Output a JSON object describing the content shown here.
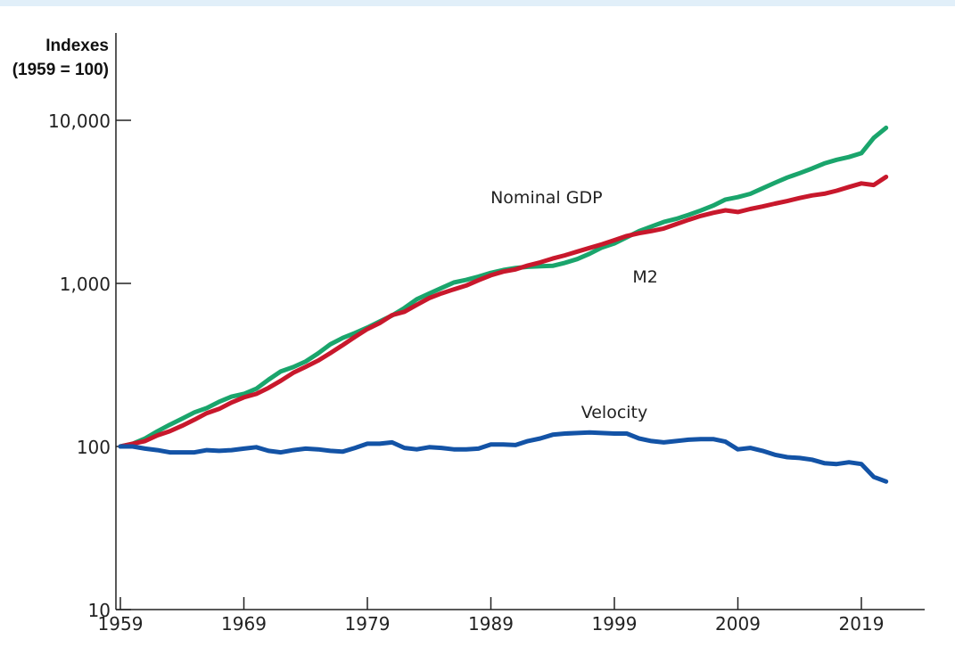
{
  "chart_data": {
    "type": "line",
    "ylabel": [
      "Indexes",
      "(1959 = 100)"
    ],
    "yscale": "log",
    "ylim": [
      10,
      20000
    ],
    "xlim": [
      1959,
      2024
    ],
    "yticks": [
      {
        "value": 10,
        "label": "10"
      },
      {
        "value": 100,
        "label": "100"
      },
      {
        "value": 1000,
        "label": "1,000"
      },
      {
        "value": 10000,
        "label": "10,000"
      }
    ],
    "xticks": [
      {
        "value": 1959,
        "label": "1959"
      },
      {
        "value": 1969,
        "label": "1969"
      },
      {
        "value": 1979,
        "label": "1979"
      },
      {
        "value": 1989,
        "label": "1989"
      },
      {
        "value": 1999,
        "label": "1999"
      },
      {
        "value": 2009,
        "label": "2009"
      },
      {
        "value": 2019,
        "label": "2019"
      }
    ],
    "grid": false,
    "series": [
      {
        "name": "M2",
        "color": "#1aa56c",
        "label_year": 2001.5,
        "label_value": 1010,
        "points": [
          [
            1959,
            100
          ],
          [
            1960,
            104
          ],
          [
            1961,
            112
          ],
          [
            1962,
            124
          ],
          [
            1963,
            136
          ],
          [
            1964,
            148
          ],
          [
            1965,
            162
          ],
          [
            1966,
            172
          ],
          [
            1967,
            188
          ],
          [
            1968,
            202
          ],
          [
            1969,
            210
          ],
          [
            1970,
            226
          ],
          [
            1971,
            257
          ],
          [
            1972,
            289
          ],
          [
            1973,
            307
          ],
          [
            1974,
            332
          ],
          [
            1975,
            372
          ],
          [
            1976,
            423
          ],
          [
            1977,
            463
          ],
          [
            1978,
            496
          ],
          [
            1979,
            536
          ],
          [
            1980,
            584
          ],
          [
            1981,
            636
          ],
          [
            1982,
            707
          ],
          [
            1983,
            799
          ],
          [
            1984,
            866
          ],
          [
            1985,
            937
          ],
          [
            1986,
            1013
          ],
          [
            1987,
            1050
          ],
          [
            1988,
            1101
          ],
          [
            1989,
            1160
          ],
          [
            1990,
            1208
          ],
          [
            1991,
            1243
          ],
          [
            1992,
            1263
          ],
          [
            1993,
            1274
          ],
          [
            1994,
            1281
          ],
          [
            1995,
            1337
          ],
          [
            1996,
            1410
          ],
          [
            1997,
            1520
          ],
          [
            1998,
            1660
          ],
          [
            1999,
            1760
          ],
          [
            2000,
            1920
          ],
          [
            2001,
            2090
          ],
          [
            2002,
            2233
          ],
          [
            2003,
            2380
          ],
          [
            2004,
            2486
          ],
          [
            2005,
            2630
          ],
          [
            2006,
            2800
          ],
          [
            2007,
            3000
          ],
          [
            2008,
            3267
          ],
          [
            2009,
            3380
          ],
          [
            2010,
            3540
          ],
          [
            2011,
            3830
          ],
          [
            2012,
            4140
          ],
          [
            2013,
            4460
          ],
          [
            2014,
            4740
          ],
          [
            2015,
            5064
          ],
          [
            2016,
            5440
          ],
          [
            2017,
            5725
          ],
          [
            2018,
            5955
          ],
          [
            2019,
            6287
          ],
          [
            2020,
            7800
          ],
          [
            2021,
            9000
          ]
        ]
      },
      {
        "name": "Nominal GDP",
        "color": "#c8182c",
        "label_year": 1993.5,
        "label_value": 3100,
        "points": [
          [
            1959,
            100
          ],
          [
            1960,
            104
          ],
          [
            1961,
            108
          ],
          [
            1962,
            117
          ],
          [
            1963,
            124
          ],
          [
            1964,
            134
          ],
          [
            1965,
            146
          ],
          [
            1966,
            160
          ],
          [
            1967,
            170
          ],
          [
            1968,
            186
          ],
          [
            1969,
            200
          ],
          [
            1970,
            210
          ],
          [
            1971,
            229
          ],
          [
            1972,
            253
          ],
          [
            1973,
            283
          ],
          [
            1974,
            308
          ],
          [
            1975,
            336
          ],
          [
            1976,
            374
          ],
          [
            1977,
            418
          ],
          [
            1978,
            470
          ],
          [
            1979,
            525
          ],
          [
            1980,
            571
          ],
          [
            1981,
            639
          ],
          [
            1982,
            670
          ],
          [
            1983,
            738
          ],
          [
            1984,
            813
          ],
          [
            1985,
            869
          ],
          [
            1986,
            919
          ],
          [
            1987,
            970
          ],
          [
            1988,
            1046
          ],
          [
            1989,
            1121
          ],
          [
            1990,
            1180
          ],
          [
            1991,
            1219
          ],
          [
            1992,
            1287
          ],
          [
            1993,
            1346
          ],
          [
            1994,
            1421
          ],
          [
            1995,
            1487
          ],
          [
            1996,
            1567
          ],
          [
            1997,
            1650
          ],
          [
            1998,
            1737
          ],
          [
            1999,
            1842
          ],
          [
            2000,
            1953
          ],
          [
            2001,
            2031
          ],
          [
            2002,
            2093
          ],
          [
            2003,
            2171
          ],
          [
            2004,
            2310
          ],
          [
            2005,
            2452
          ],
          [
            2006,
            2593
          ],
          [
            2007,
            2710
          ],
          [
            2008,
            2805
          ],
          [
            2009,
            2738
          ],
          [
            2010,
            2858
          ],
          [
            2011,
            2961
          ],
          [
            2012,
            3085
          ],
          [
            2013,
            3197
          ],
          [
            2014,
            3338
          ],
          [
            2015,
            3463
          ],
          [
            2016,
            3548
          ],
          [
            2017,
            3700
          ],
          [
            2018,
            3900
          ],
          [
            2019,
            4105
          ],
          [
            2020,
            4013
          ],
          [
            2021,
            4500
          ]
        ]
      },
      {
        "name": "Velocity",
        "color": "#1353a6",
        "label_year": 1999,
        "label_value": 150,
        "points": [
          [
            1959,
            100
          ],
          [
            1960,
            100
          ],
          [
            1961,
            97
          ],
          [
            1962,
            95
          ],
          [
            1963,
            92
          ],
          [
            1964,
            92
          ],
          [
            1965,
            92
          ],
          [
            1966,
            95
          ],
          [
            1967,
            94
          ],
          [
            1968,
            95
          ],
          [
            1969,
            97
          ],
          [
            1970,
            99
          ],
          [
            1971,
            94
          ],
          [
            1972,
            92
          ],
          [
            1973,
            95
          ],
          [
            1974,
            97
          ],
          [
            1975,
            96
          ],
          [
            1976,
            94
          ],
          [
            1977,
            93
          ],
          [
            1978,
            98
          ],
          [
            1979,
            104
          ],
          [
            1980,
            104
          ],
          [
            1981,
            106
          ],
          [
            1982,
            98
          ],
          [
            1983,
            96
          ],
          [
            1984,
            99
          ],
          [
            1985,
            98
          ],
          [
            1986,
            96
          ],
          [
            1987,
            96
          ],
          [
            1988,
            97
          ],
          [
            1989,
            103
          ],
          [
            1990,
            103
          ],
          [
            1991,
            102
          ],
          [
            1992,
            108
          ],
          [
            1993,
            112
          ],
          [
            1994,
            118
          ],
          [
            1995,
            120
          ],
          [
            1996,
            121
          ],
          [
            1997,
            122
          ],
          [
            1998,
            121
          ],
          [
            1999,
            120
          ],
          [
            2000,
            120
          ],
          [
            2001,
            112
          ],
          [
            2002,
            108
          ],
          [
            2003,
            106
          ],
          [
            2004,
            108
          ],
          [
            2005,
            110
          ],
          [
            2006,
            111
          ],
          [
            2007,
            111
          ],
          [
            2008,
            107
          ],
          [
            2009,
            96
          ],
          [
            2010,
            98
          ],
          [
            2011,
            94
          ],
          [
            2012,
            89
          ],
          [
            2013,
            86
          ],
          [
            2014,
            85
          ],
          [
            2015,
            83
          ],
          [
            2016,
            79
          ],
          [
            2017,
            78
          ],
          [
            2018,
            80
          ],
          [
            2019,
            78
          ],
          [
            2020,
            65
          ],
          [
            2021,
            61
          ]
        ]
      }
    ]
  }
}
